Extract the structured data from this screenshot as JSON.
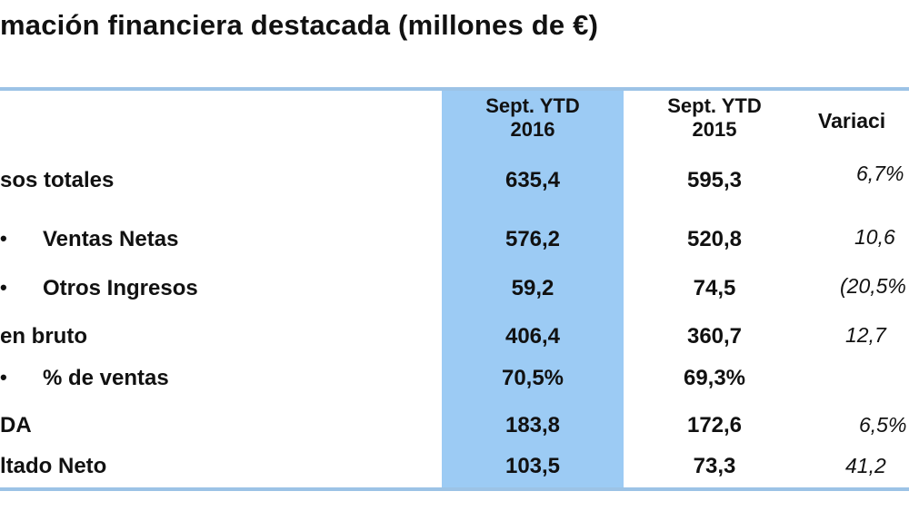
{
  "title": "mación financiera destacada (millones de €)",
  "headers": {
    "col1_line1": "Sept. YTD",
    "col1_line2": "2016",
    "col2_line1": "Sept. YTD",
    "col2_line2": "2015",
    "col3": "Variaci"
  },
  "rows": [
    {
      "label": "sos totales",
      "bullet": "",
      "v2016": "635,4",
      "v2015": "595,3",
      "var": "6,7%"
    },
    {
      "label": "Ventas Netas",
      "bullet": "•",
      "v2016": "576,2",
      "v2015": "520,8",
      "var": "10,6"
    },
    {
      "label": "Otros Ingresos",
      "bullet": "•",
      "v2016": "59,2",
      "v2015": "74,5",
      "var": "(20,5%"
    },
    {
      "label": "en bruto",
      "bullet": "",
      "v2016": "406,4",
      "v2015": "360,7",
      "var": "12,7"
    },
    {
      "label": "% de ventas",
      "bullet": "•",
      "v2016": "70,5%",
      "v2015": "69,3%",
      "var": ""
    },
    {
      "label": "DA",
      "bullet": "",
      "v2016": "183,8",
      "v2015": "172,6",
      "var": "6,5%"
    },
    {
      "label": "ltado Neto",
      "bullet": "",
      "v2016": "103,5",
      "v2015": "73,3",
      "var": "41,2"
    }
  ],
  "colors": {
    "highlight": "#9ccbf4",
    "rule": "#9cc3e6"
  }
}
